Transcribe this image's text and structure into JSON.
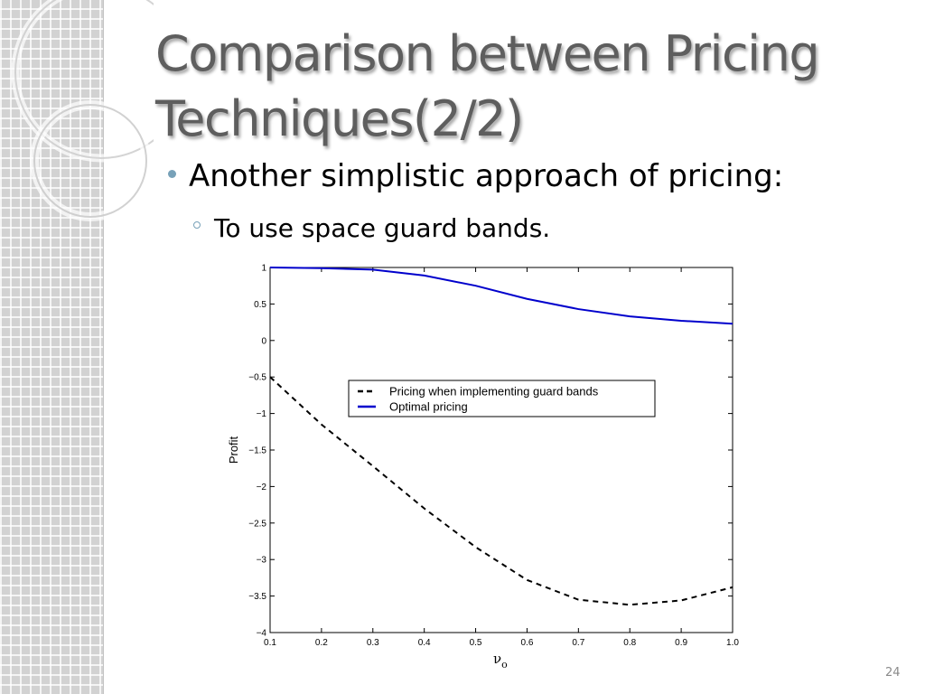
{
  "slide": {
    "title_line1": "Comparison between Pricing",
    "title_line2": "Techniques(2/2)",
    "bullet1": "Another simplistic approach of pricing:",
    "bullet2": "To use space guard bands.",
    "page_number": "24"
  },
  "theme": {
    "bullet_color": "#77a1b8",
    "title_color": "#5e5e5e"
  },
  "chart_data": {
    "type": "line",
    "title": "",
    "xlabel": "ν",
    "xlabel_subscript": "o",
    "ylabel": "Profit",
    "xlim": [
      0.1,
      1.0
    ],
    "ylim": [
      -4,
      1
    ],
    "xticks": [
      "0.1",
      "0.2",
      "0.3",
      "0.4",
      "0.5",
      "0.6",
      "0.7",
      "0.8",
      "0.9",
      "1.0"
    ],
    "yticks": [
      "1",
      "0.5",
      "0",
      "−0.5",
      "−1",
      "−1.5",
      "−2",
      "−2.5",
      "−3",
      "−3.5",
      "−4"
    ],
    "grid": false,
    "legend_position": "center",
    "x": [
      0.1,
      0.2,
      0.3,
      0.4,
      0.5,
      0.6,
      0.7,
      0.8,
      0.9,
      1.0
    ],
    "series": [
      {
        "name": "Pricing when implementing guard bands",
        "style": "dashed",
        "color": "#000000",
        "values": [
          -0.5,
          -1.15,
          -1.72,
          -2.3,
          -2.83,
          -3.28,
          -3.55,
          -3.62,
          -3.56,
          -3.38
        ]
      },
      {
        "name": "Optimal pricing",
        "style": "solid",
        "color": "#0000cc",
        "values": [
          1.0,
          0.99,
          0.97,
          0.89,
          0.75,
          0.57,
          0.43,
          0.33,
          0.27,
          0.23
        ]
      }
    ]
  }
}
